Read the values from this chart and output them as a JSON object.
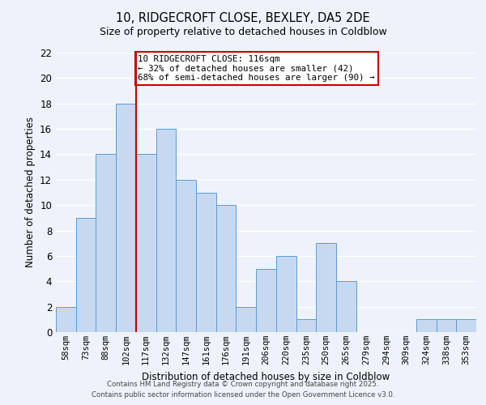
{
  "title1": "10, RIDGECROFT CLOSE, BEXLEY, DA5 2DE",
  "title2": "Size of property relative to detached houses in Coldblow",
  "xlabel": "Distribution of detached houses by size in Coldblow",
  "ylabel": "Number of detached properties",
  "bin_labels": [
    "58sqm",
    "73sqm",
    "88sqm",
    "102sqm",
    "117sqm",
    "132sqm",
    "147sqm",
    "161sqm",
    "176sqm",
    "191sqm",
    "206sqm",
    "220sqm",
    "235sqm",
    "250sqm",
    "265sqm",
    "279sqm",
    "294sqm",
    "309sqm",
    "324sqm",
    "338sqm",
    "353sqm"
  ],
  "bar_heights": [
    2,
    9,
    14,
    18,
    14,
    16,
    12,
    11,
    10,
    2,
    5,
    6,
    1,
    7,
    4,
    0,
    0,
    0,
    1,
    1,
    1
  ],
  "bar_color": "#c6d9f1",
  "bar_edge_color": "#5b9bd5",
  "background_color": "#eef3fb",
  "grid_color": "#ffffff",
  "vline_x_index": 4,
  "vline_color": "#cc0000",
  "annotation_text": "10 RIDGECROFT CLOSE: 116sqm\n← 32% of detached houses are smaller (42)\n68% of semi-detached houses are larger (90) →",
  "annotation_box_color": "#ffffff",
  "annotation_box_edge": "#cc0000",
  "ylim": [
    0,
    22
  ],
  "yticks": [
    0,
    2,
    4,
    6,
    8,
    10,
    12,
    14,
    16,
    18,
    20,
    22
  ],
  "footer1": "Contains HM Land Registry data © Crown copyright and database right 2025.",
  "footer2": "Contains public sector information licensed under the Open Government Licence v3.0."
}
